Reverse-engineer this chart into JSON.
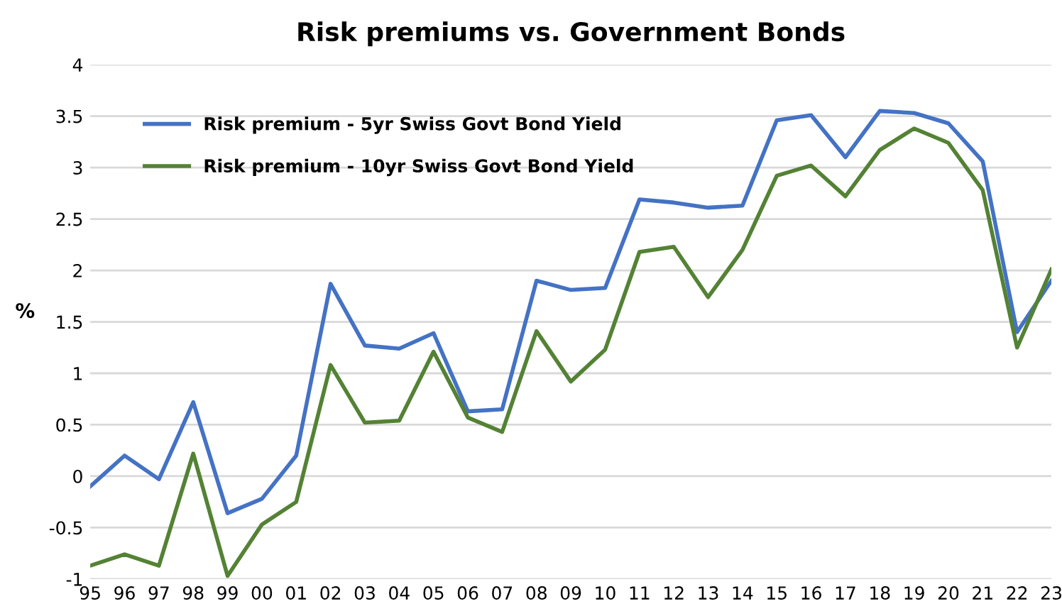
{
  "chart_data": {
    "type": "line",
    "title": "Risk premiums vs. Government Bonds",
    "ylabel": "%",
    "categories": [
      "95",
      "96",
      "97",
      "98",
      "99",
      "00",
      "01",
      "02",
      "03",
      "04",
      "05",
      "06",
      "07",
      "08",
      "09",
      "10",
      "11",
      "12",
      "13",
      "14",
      "15",
      "16",
      "17",
      "18",
      "19",
      "20",
      "21",
      "22",
      "23"
    ],
    "series": [
      {
        "name": "Risk premium - 5yr Swiss Govt Bond Yield",
        "color": "#4472c4",
        "values": [
          -0.1,
          0.2,
          -0.03,
          0.72,
          -0.36,
          -0.22,
          0.2,
          1.87,
          1.27,
          1.24,
          1.39,
          0.63,
          0.65,
          1.9,
          1.81,
          1.83,
          2.69,
          2.66,
          2.61,
          2.63,
          3.46,
          3.51,
          3.1,
          3.55,
          3.53,
          3.43,
          3.06,
          1.4,
          1.9
        ]
      },
      {
        "name": "Risk premium - 10yr Swiss Govt Bond Yield",
        "color": "#548235",
        "values": [
          -0.87,
          -0.76,
          -0.87,
          0.22,
          -0.97,
          -0.47,
          -0.25,
          1.08,
          0.52,
          0.54,
          1.21,
          0.57,
          0.43,
          1.41,
          0.92,
          1.23,
          2.18,
          2.23,
          1.74,
          2.2,
          2.92,
          3.02,
          2.72,
          3.17,
          3.38,
          3.24,
          2.78,
          1.25,
          2.01
        ]
      }
    ],
    "ylim": [
      -1,
      4
    ],
    "yticks": [
      -1,
      -0.5,
      0,
      0.5,
      1,
      1.5,
      2,
      2.5,
      3,
      3.5,
      4
    ],
    "grid": "y",
    "legend": "top left",
    "marker": "none",
    "line_style": "solid"
  }
}
